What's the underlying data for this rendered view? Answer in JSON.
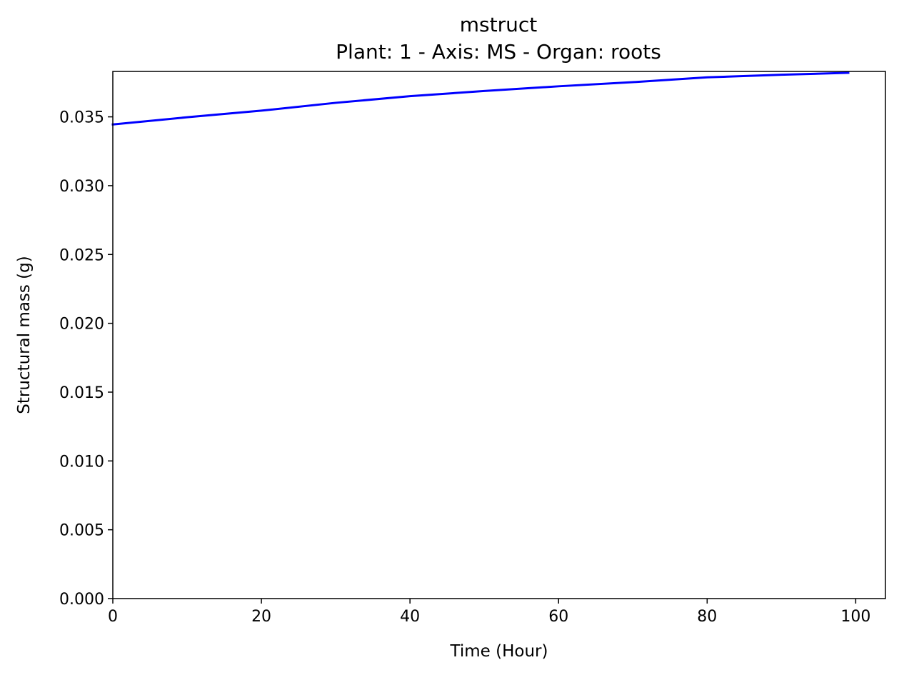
{
  "chart_data": {
    "type": "line",
    "title": "mstruct",
    "subtitle": "Plant: 1 - Axis: MS - Organ: roots",
    "xlabel": "Time (Hour)",
    "ylabel": "Structural mass (g)",
    "xlim": [
      0,
      104
    ],
    "ylim": [
      0,
      0.0383
    ],
    "xticks": [
      0,
      20,
      40,
      60,
      80,
      100
    ],
    "xtick_labels": [
      "0",
      "20",
      "40",
      "60",
      "80",
      "100"
    ],
    "yticks": [
      0,
      0.005,
      0.01,
      0.015,
      0.02,
      0.025,
      0.03,
      0.035
    ],
    "ytick_labels": [
      "0.000",
      "0.005",
      "0.010",
      "0.015",
      "0.020",
      "0.025",
      "0.030",
      "0.035"
    ],
    "grid": false,
    "series": [
      {
        "color": "#0000ff",
        "x": [
          0,
          10,
          20,
          30,
          40,
          50,
          60,
          70,
          80,
          90,
          99
        ],
        "y": [
          0.03445,
          0.03497,
          0.03545,
          0.03602,
          0.0365,
          0.03688,
          0.03722,
          0.03752,
          0.03787,
          0.03806,
          0.0382
        ]
      }
    ]
  }
}
